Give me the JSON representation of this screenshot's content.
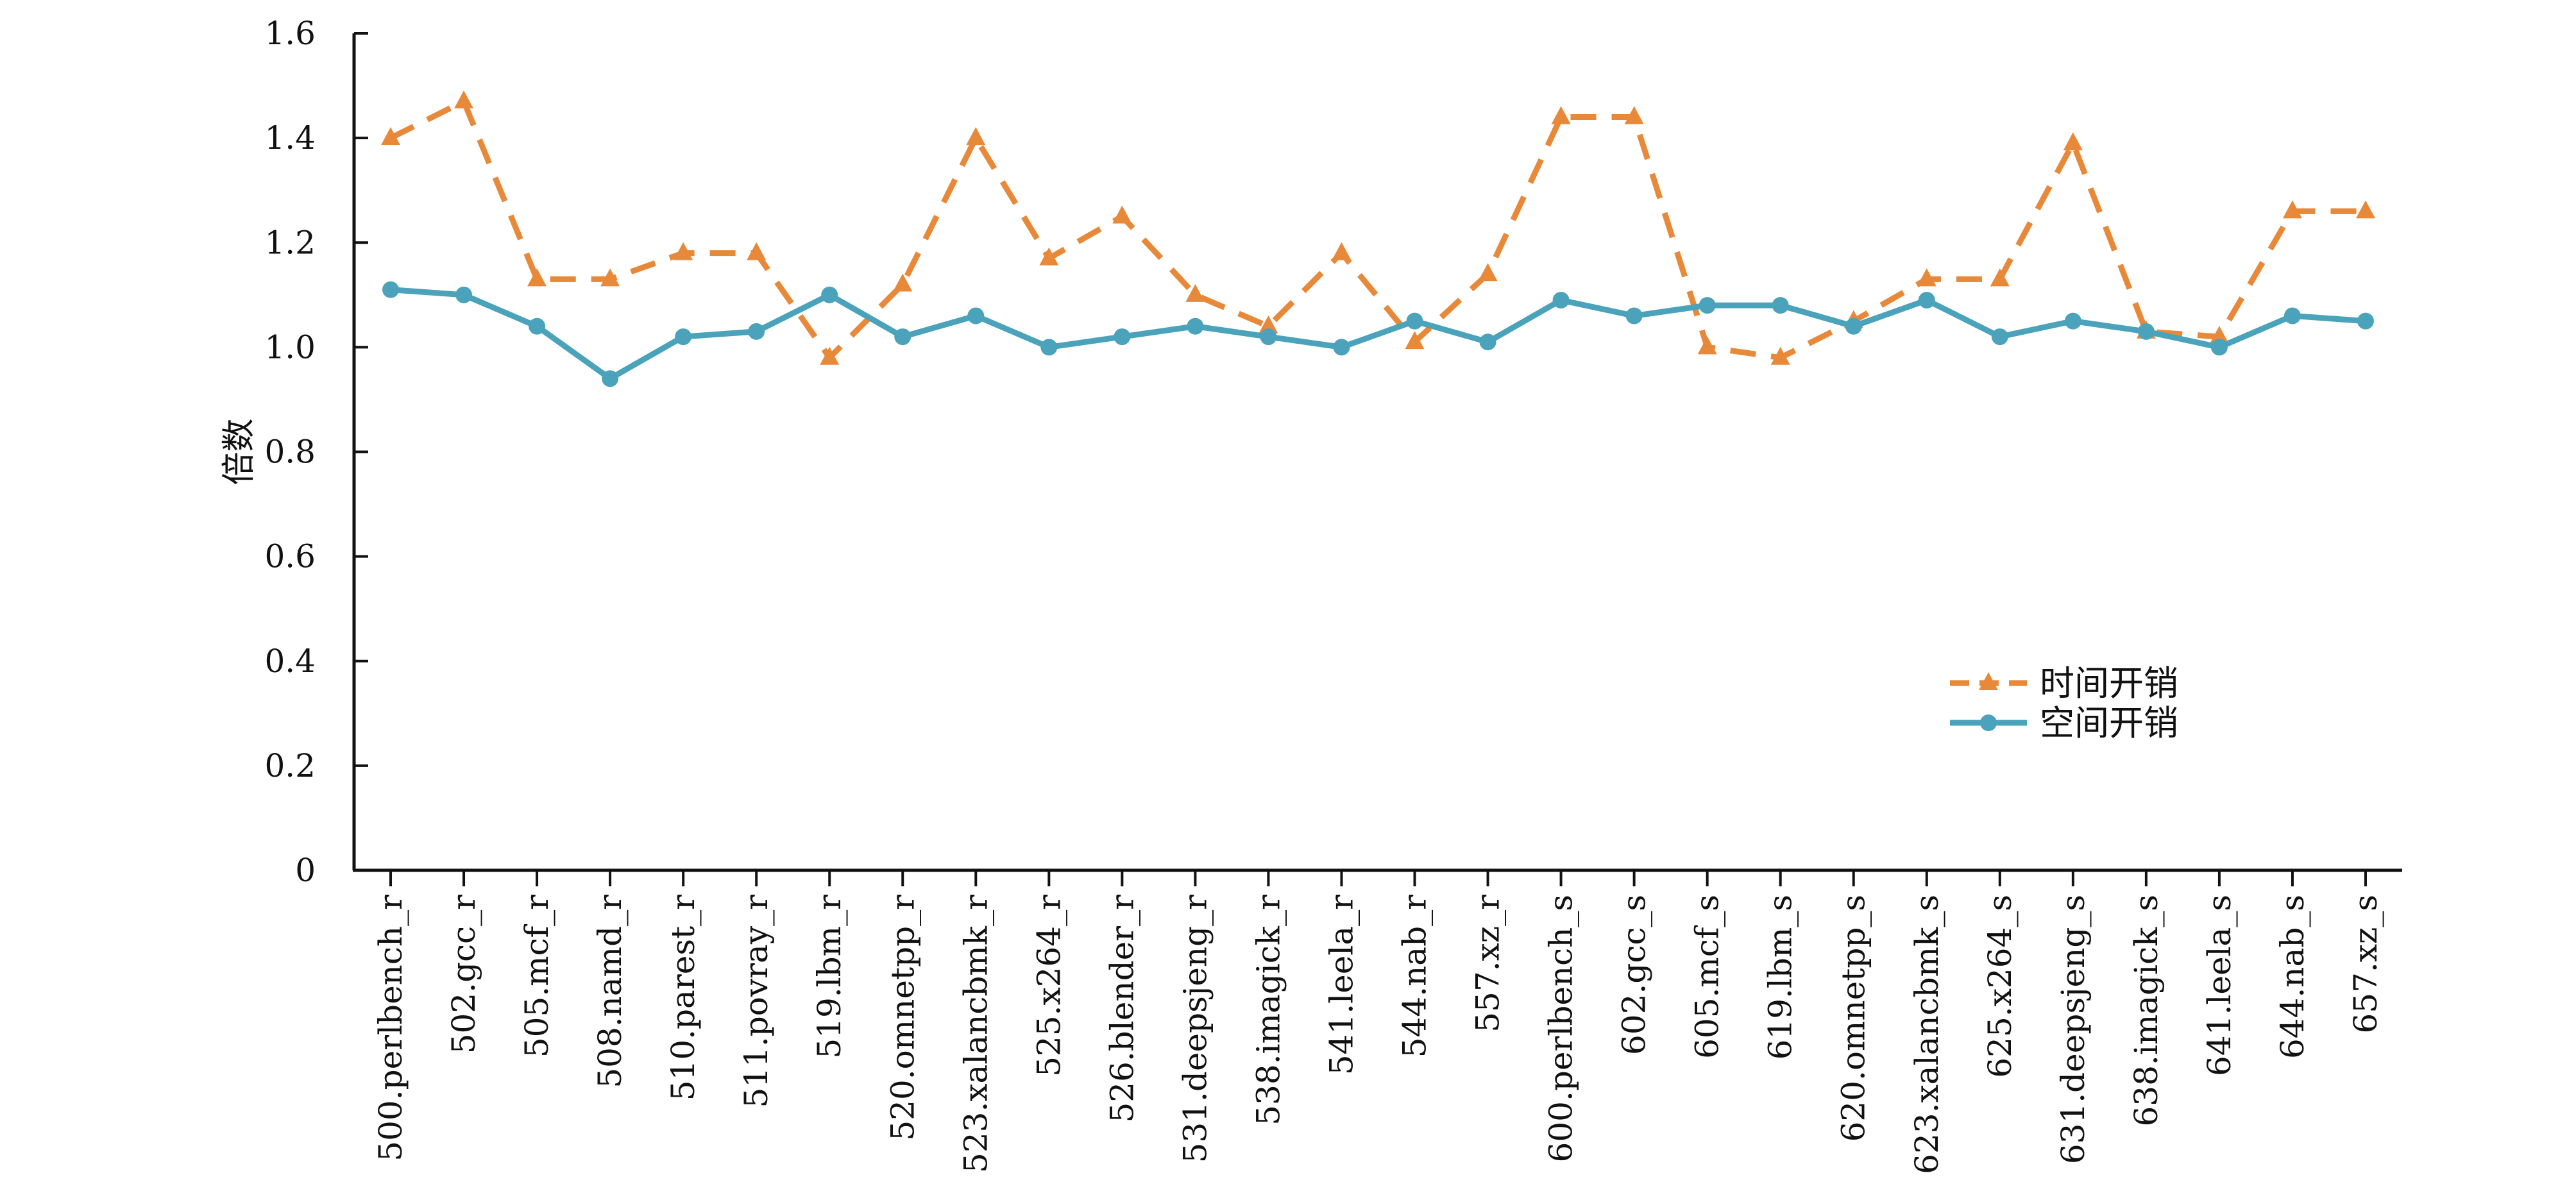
{
  "chart_data": {
    "type": "line",
    "title": "",
    "xlabel": "",
    "ylabel": "倍数",
    "ylim": [
      0,
      1.6
    ],
    "yticks": [
      0,
      0.2,
      0.4,
      0.6,
      0.8,
      1.0,
      1.2,
      1.4,
      1.6
    ],
    "ytick_labels": [
      "0",
      "0.2",
      "0.4",
      "0.6",
      "0.8",
      "1.0",
      "1.2",
      "1.4",
      "1.6"
    ],
    "grid": false,
    "legend_position": "bottom-right",
    "categories": [
      "500.perlbench_r",
      "502.gcc_r",
      "505.mcf_r",
      "508.namd_r",
      "510.parest_r",
      "511.povray_r",
      "519.lbm_r",
      "520.omnetpp_r",
      "523.xalancbmk_r",
      "525.x264_r",
      "526.blender_r",
      "531.deepsjeng_r",
      "538.imagick_r",
      "541.leela_r",
      "544.nab_r",
      "557.xz_r",
      "600.perlbench_s",
      "602.gcc_s",
      "605.mcf_s",
      "619.lbm_s",
      "620.omnetpp_s",
      "623.xalancbmk_s",
      "625.x264_s",
      "631.deepsjeng_s",
      "638.imagick_s",
      "641.leela_s",
      "644.nab_s",
      "657.xz_s"
    ],
    "series": [
      {
        "name": "时间开销",
        "color": "#e8893a",
        "line_style": "dashed",
        "marker": "triangle",
        "values": [
          1.4,
          1.47,
          1.13,
          1.13,
          1.18,
          1.18,
          0.98,
          1.12,
          1.4,
          1.17,
          1.25,
          1.1,
          1.04,
          1.18,
          1.01,
          1.14,
          1.44,
          1.44,
          1.0,
          0.98,
          1.05,
          1.13,
          1.13,
          1.39,
          1.03,
          1.02,
          1.26,
          1.26
        ]
      },
      {
        "name": "空间开销",
        "color": "#4aa3ba",
        "line_style": "solid",
        "marker": "circle",
        "values": [
          1.11,
          1.1,
          1.04,
          0.94,
          1.02,
          1.03,
          1.1,
          1.02,
          1.06,
          1.0,
          1.02,
          1.04,
          1.02,
          1.0,
          1.05,
          1.01,
          1.09,
          1.06,
          1.08,
          1.08,
          1.04,
          1.09,
          1.02,
          1.05,
          1.03,
          1.0,
          1.06,
          1.05
        ]
      }
    ]
  }
}
